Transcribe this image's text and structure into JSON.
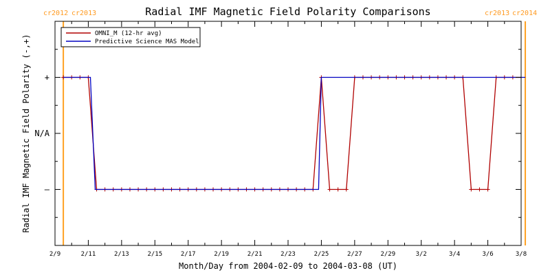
{
  "chart_data": {
    "type": "line",
    "title": "Radial IMF Magnetic Field Polarity Comparisons",
    "xlabel": "Month/Day from 2004-02-09 to 2004-03-08 (UT)",
    "ylabel": "Radial IMF Magnetic Field Polarity (-,+)",
    "x_tick_labels": [
      "2/9",
      "2/11",
      "2/13",
      "2/15",
      "2/17",
      "2/19",
      "2/21",
      "2/23",
      "2/25",
      "2/27",
      "2/29",
      "3/2",
      "3/4",
      "3/6",
      "3/8"
    ],
    "y_tick_labels": [
      "+",
      "N/A",
      "–"
    ],
    "ylim": [
      -2,
      2
    ],
    "xlim": [
      "2004-02-09",
      "2004-03-08"
    ],
    "carrington_markers": [
      {
        "date": "2004-02-09T12:00",
        "left_label": "cr2012",
        "right_label": "cr2013"
      },
      {
        "date": "2004-03-08T06:00",
        "left_label": "cr2013",
        "right_label": "cr2014"
      }
    ],
    "legend_position": "top-left",
    "series": [
      {
        "name": "OMNI_M (12-hr avg)",
        "color": "#b00000",
        "x": [
          "2004-02-09T12:00",
          "2004-02-10T00:00",
          "2004-02-10T12:00",
          "2004-02-11T00:00",
          "2004-02-11T12:00",
          "2004-02-12T00:00",
          "2004-02-12T12:00",
          "2004-02-13T00:00",
          "2004-02-13T12:00",
          "2004-02-14T00:00",
          "2004-02-14T12:00",
          "2004-02-15T00:00",
          "2004-02-15T12:00",
          "2004-02-16T00:00",
          "2004-02-16T12:00",
          "2004-02-17T00:00",
          "2004-02-17T12:00",
          "2004-02-18T00:00",
          "2004-02-18T12:00",
          "2004-02-19T00:00",
          "2004-02-19T12:00",
          "2004-02-20T00:00",
          "2004-02-20T12:00",
          "2004-02-21T00:00",
          "2004-02-21T12:00",
          "2004-02-22T00:00",
          "2004-02-22T12:00",
          "2004-02-23T00:00",
          "2004-02-23T12:00",
          "2004-02-24T00:00",
          "2004-02-24T12:00",
          "2004-02-25T00:00",
          "2004-02-25T12:00",
          "2004-02-26T00:00",
          "2004-02-26T12:00",
          "2004-02-27T00:00",
          "2004-02-27T12:00",
          "2004-02-28T00:00",
          "2004-02-28T12:00",
          "2004-02-29T00:00",
          "2004-02-29T12:00",
          "2004-03-01T00:00",
          "2004-03-01T12:00",
          "2004-03-02T00:00",
          "2004-03-02T12:00",
          "2004-03-03T00:00",
          "2004-03-03T12:00",
          "2004-03-04T00:00",
          "2004-03-04T12:00",
          "2004-03-05T00:00",
          "2004-03-05T12:00",
          "2004-03-06T00:00",
          "2004-03-06T12:00",
          "2004-03-07T00:00",
          "2004-03-07T12:00",
          "2004-03-08T00:00"
        ],
        "values": [
          1,
          1,
          1,
          1,
          -1,
          -1,
          -1,
          -1,
          -1,
          -1,
          -1,
          -1,
          -1,
          -1,
          -1,
          -1,
          -1,
          -1,
          -1,
          -1,
          -1,
          -1,
          -1,
          -1,
          -1,
          -1,
          -1,
          -1,
          -1,
          -1,
          -1,
          1,
          -1,
          -1,
          -1,
          1,
          1,
          1,
          1,
          1,
          1,
          1,
          1,
          1,
          1,
          1,
          1,
          1,
          1,
          -1,
          -1,
          -1,
          1,
          1,
          1,
          1
        ],
        "markers": true
      },
      {
        "name": "Predictive Science MAS Model",
        "color": "#0000c0",
        "x": [
          "2004-02-09T12:00",
          "2004-02-11T03:00",
          "2004-02-11T10:00",
          "2004-02-24T20:00",
          "2004-02-25T00:00",
          "2004-03-08T06:00"
        ],
        "values": [
          1,
          1,
          -1,
          -1,
          1,
          1
        ],
        "markers": false
      }
    ]
  },
  "colors": {
    "carrington_line": "#ffa020",
    "carrington_text": "#ff9a20",
    "axis": "#000000"
  }
}
